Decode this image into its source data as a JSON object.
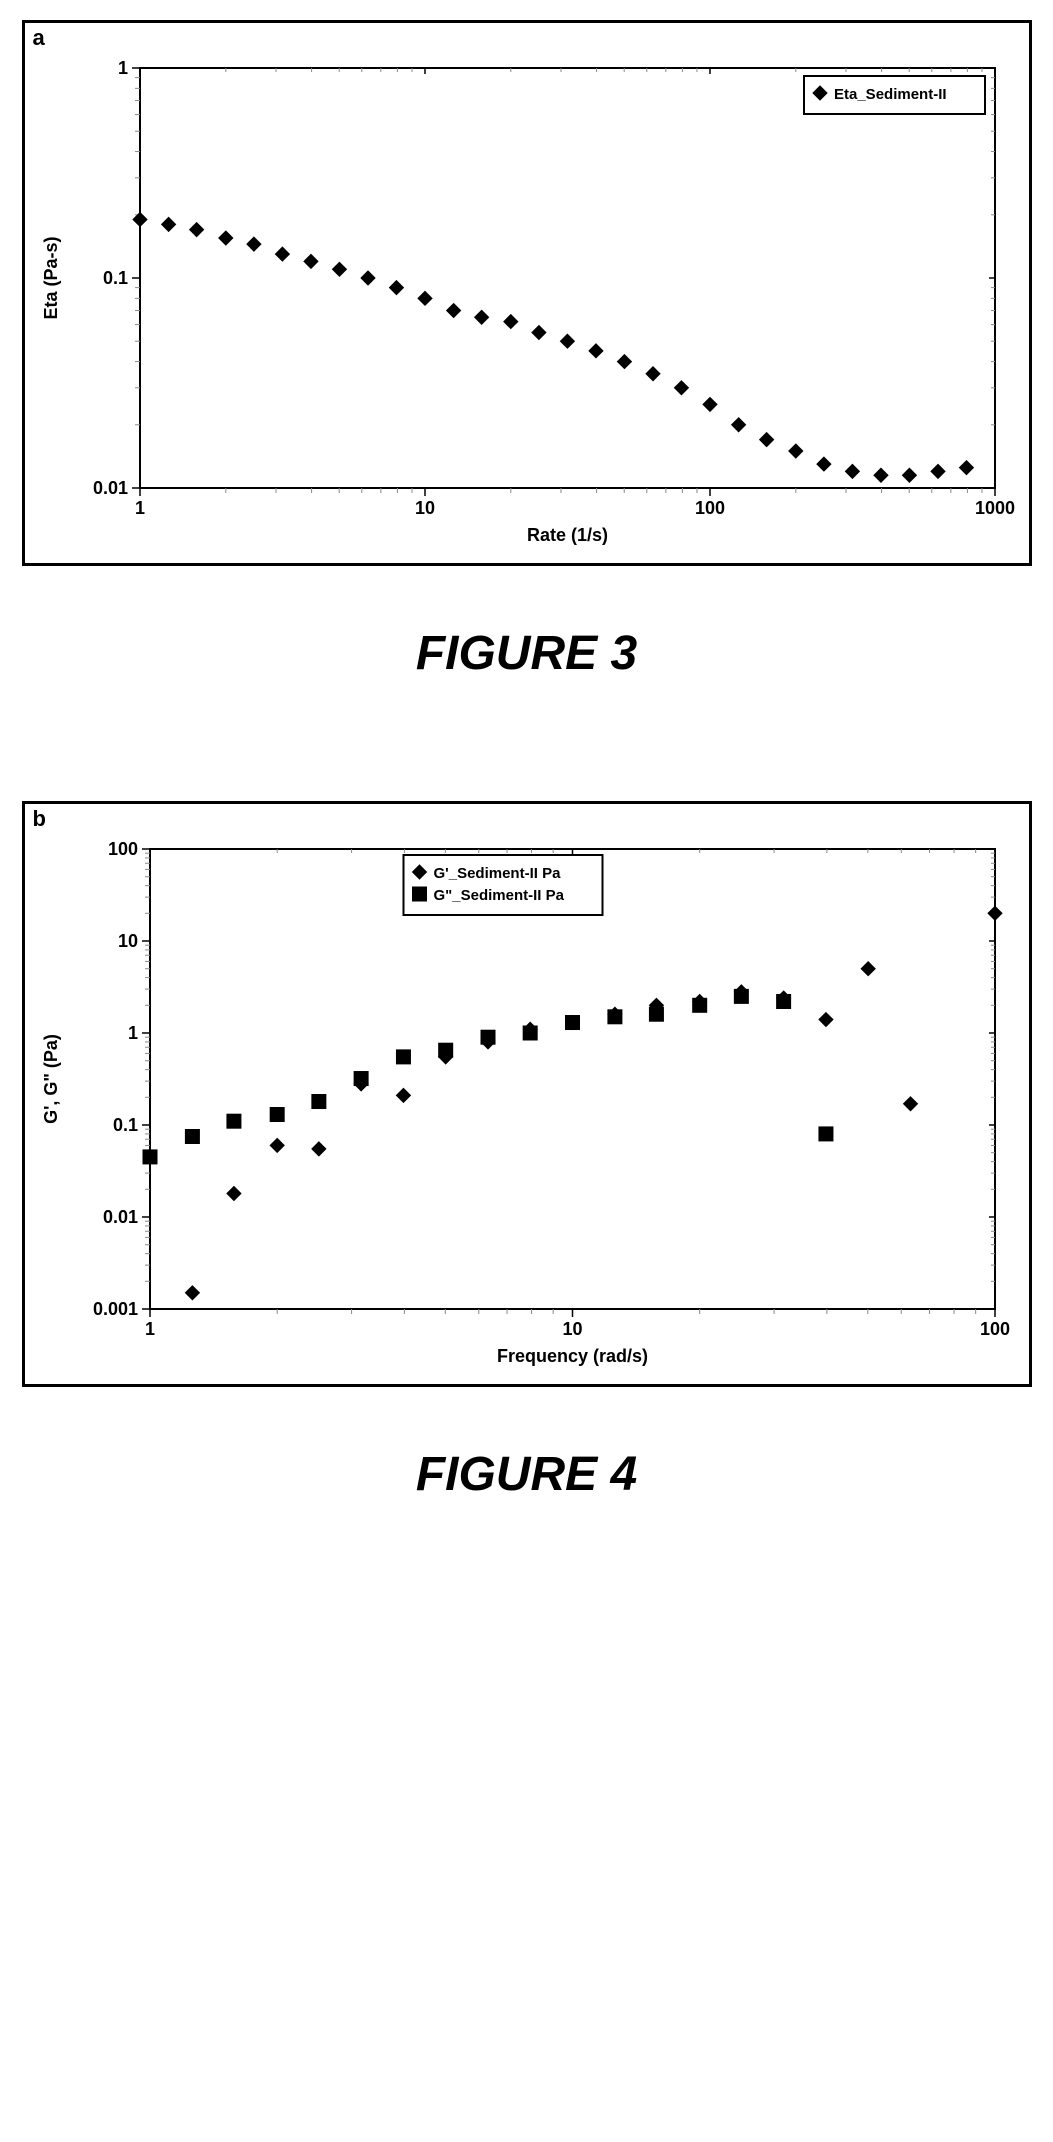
{
  "figure3": {
    "type": "scatter",
    "panel_label": "a",
    "caption": "FIGURE 3",
    "xlabel": "Rate (1/s)",
    "ylabel": "Eta (Pa-s)",
    "label_fontsize": 16,
    "xscale": "log",
    "yscale": "log",
    "xlim": [
      1,
      1000
    ],
    "ylim": [
      0.01,
      1
    ],
    "xticks": [
      1,
      10,
      100,
      1000
    ],
    "yticks": [
      0.01,
      0.1,
      1
    ],
    "legend": {
      "items": [
        {
          "marker": "diamond",
          "color": "#000000",
          "label": "Eta_Sediment-II"
        }
      ],
      "border_color": "#000000",
      "position": "top-right"
    },
    "series": [
      {
        "name": "Eta_Sediment-II",
        "marker": "diamond",
        "marker_size": 14,
        "color": "#000000",
        "x": [
          1.0,
          1.26,
          1.58,
          2.0,
          2.51,
          3.16,
          3.98,
          5.01,
          6.31,
          7.94,
          10.0,
          12.6,
          15.8,
          20.0,
          25.1,
          31.6,
          39.8,
          50.1,
          63.1,
          79.4,
          100,
          126,
          158,
          200,
          251,
          316,
          398,
          501,
          631,
          794
        ],
        "y": [
          0.19,
          0.18,
          0.17,
          0.155,
          0.145,
          0.13,
          0.12,
          0.11,
          0.1,
          0.09,
          0.08,
          0.07,
          0.065,
          0.062,
          0.055,
          0.05,
          0.045,
          0.04,
          0.035,
          0.03,
          0.025,
          0.02,
          0.017,
          0.015,
          0.013,
          0.012,
          0.0115,
          0.0115,
          0.012,
          0.0125
        ]
      }
    ],
    "background_color": "#ffffff",
    "axis_color": "#000000",
    "tick_color": "#888888"
  },
  "figure4": {
    "type": "scatter",
    "panel_label": "b",
    "caption": "FIGURE 4",
    "xlabel": "Frequency (rad/s)",
    "ylabel": "G', G\" (Pa)",
    "label_fontsize": 16,
    "xscale": "log",
    "yscale": "log",
    "xlim": [
      1,
      100
    ],
    "ylim": [
      0.001,
      100
    ],
    "xticks": [
      1,
      10,
      100
    ],
    "yticks": [
      0.001,
      0.01,
      0.1,
      1,
      10,
      100
    ],
    "legend": {
      "items": [
        {
          "marker": "diamond",
          "color": "#000000",
          "label": "G'_Sediment-II Pa"
        },
        {
          "marker": "square",
          "color": "#000000",
          "label": "G\"_Sediment-II Pa"
        }
      ],
      "border_color": "#000000",
      "position": "top-center"
    },
    "series": [
      {
        "name": "G'_Sediment-II Pa",
        "marker": "diamond",
        "marker_size": 14,
        "color": "#000000",
        "x": [
          1.0,
          1.26,
          1.58,
          2.0,
          2.51,
          3.16,
          3.98,
          5.01,
          6.31,
          7.94,
          10.0,
          12.6,
          15.8,
          20.0,
          25.1,
          31.6,
          39.8,
          50.1,
          63.1,
          100
        ],
        "y": [
          0.045,
          0.0015,
          0.018,
          0.06,
          0.055,
          0.28,
          0.21,
          0.55,
          0.8,
          1.1,
          1.3,
          1.6,
          2.0,
          2.2,
          2.8,
          2.4,
          1.4,
          5.0,
          0.17,
          20
        ]
      },
      {
        "name": "G\"_Sediment-II Pa",
        "marker": "square",
        "marker_size": 14,
        "color": "#000000",
        "x": [
          1.0,
          1.26,
          1.58,
          2.0,
          2.51,
          3.16,
          3.98,
          5.01,
          6.31,
          7.94,
          10.0,
          12.6,
          15.8,
          20.0,
          25.1,
          31.6,
          39.8
        ],
        "y": [
          0.045,
          0.075,
          0.11,
          0.13,
          0.18,
          0.32,
          0.55,
          0.65,
          0.9,
          1.0,
          1.3,
          1.5,
          1.6,
          2.0,
          2.5,
          2.2,
          0.08
        ]
      }
    ],
    "background_color": "#ffffff",
    "axis_color": "#000000",
    "tick_color": "#888888"
  }
}
